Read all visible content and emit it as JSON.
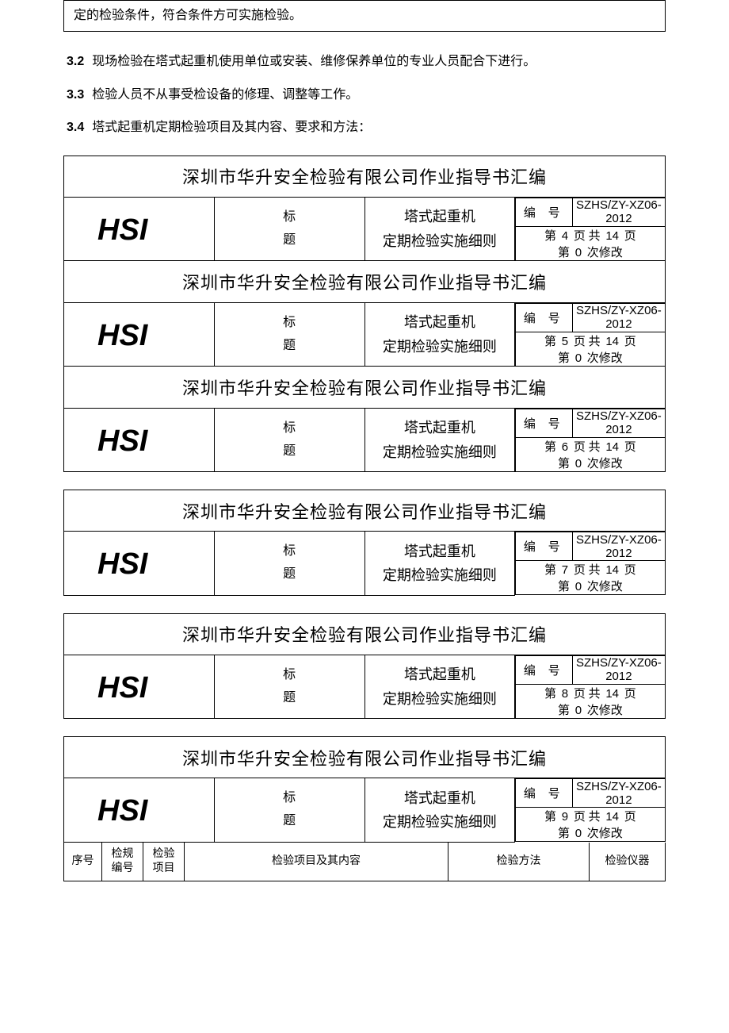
{
  "top_fragment": "定的检验条件，符合条件方可实施检验。",
  "paragraphs": [
    {
      "num": "3.2",
      "text": "现场检验在塔式起重机使用单位或安装、维修保养单位的专业人员配合下进行。"
    },
    {
      "num": "3.3",
      "text": "检验人员不从事受检设备的修理、调整等工作。"
    },
    {
      "num": "3.4",
      "text": "塔式起重机定期检验项目及其内容、要求和方法："
    }
  ],
  "company_title": "深圳市华升安全检验有限公司作业指导书汇编",
  "logo_text": "HSI",
  "label_chars": [
    "标",
    "题"
  ],
  "doc_title": [
    "塔式起重机",
    "定期检验实施细则"
  ],
  "meta_label": "编 号",
  "doc_code": "SZHS/ZY-XZ06-2012",
  "total_pages": "14",
  "revision": "0",
  "page_prefix": "第",
  "page_mid": "页 共",
  "page_suffix": "页",
  "rev_prefix": "第",
  "rev_suffix": "次修改",
  "blocks": [
    {
      "page": "4"
    },
    {
      "page": "5"
    },
    {
      "page": "6"
    },
    {
      "page": "7"
    },
    {
      "page": "8"
    },
    {
      "page": "9"
    }
  ],
  "columns": [
    "序号",
    "检规\n编号",
    "检验\n项目",
    "检验项目及其内容",
    "检验方法",
    "检验仪器"
  ],
  "colors": {
    "text": "#000000",
    "background": "#ffffff",
    "border": "#000000"
  }
}
